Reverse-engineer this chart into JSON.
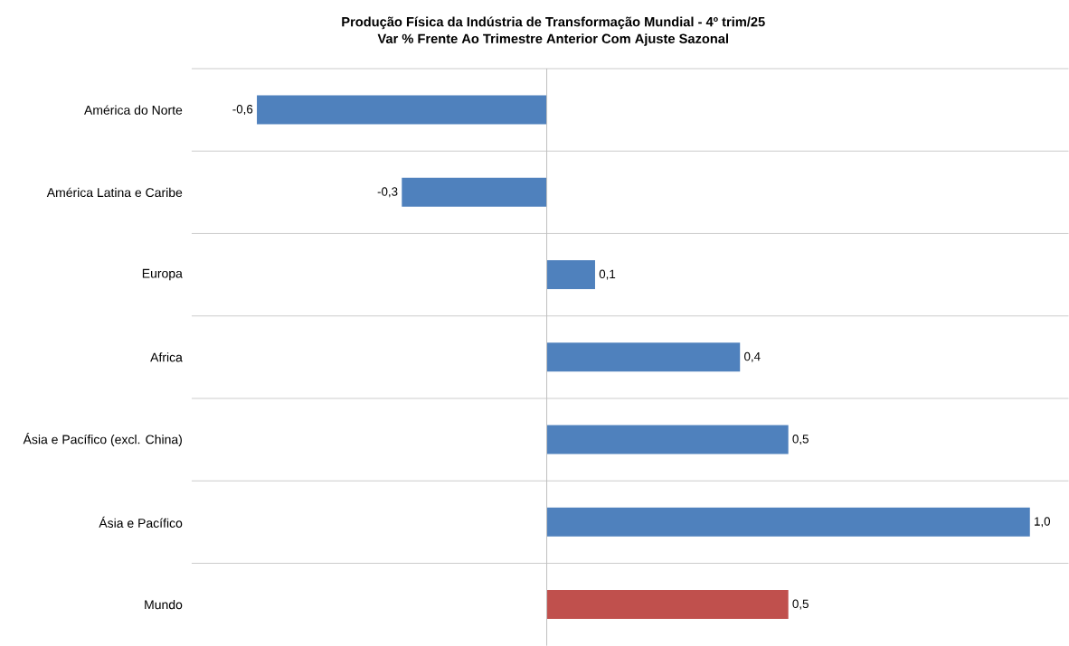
{
  "chart_data": {
    "type": "bar",
    "orientation": "horizontal",
    "title": "Produção Física da Indústria de Transformação Mundial - 4º trim/25",
    "subtitle": "Var % Frente Ao Trimestre Anterior Com Ajuste Sazonal",
    "categories": [
      "América do Norte",
      "América Latina e Caribe",
      "Europa",
      "Africa",
      "Ásia e Pacífico (excl. China)",
      "Ásia e Pacífico",
      "Mundo"
    ],
    "values": [
      -0.6,
      -0.3,
      0.1,
      0.4,
      0.5,
      1.0,
      0.5
    ],
    "value_labels": [
      "-0,6",
      "-0,3",
      "0,1",
      "0,4",
      "0,5",
      "1,0",
      "0,5"
    ],
    "colors": [
      "#4f81bd",
      "#4f81bd",
      "#4f81bd",
      "#4f81bd",
      "#4f81bd",
      "#4f81bd",
      "#c0504d"
    ],
    "grid": "y"
  }
}
